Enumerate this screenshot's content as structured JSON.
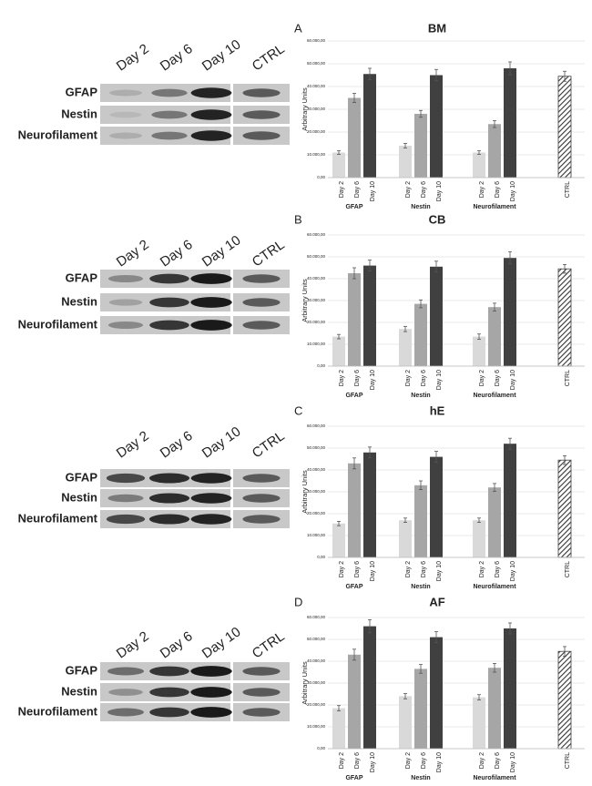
{
  "chart_data": [
    {
      "type": "bar",
      "panel": "A",
      "title": "BM",
      "y_label": "Arbitrary Units",
      "categories": [
        "Day 2",
        "Day 6",
        "Day 10",
        "Day 2",
        "Day 6",
        "Day 10",
        "Day 2",
        "Day 6",
        "Day 10",
        "CTRL"
      ],
      "groups": [
        "GFAP",
        "Nestin",
        "Neurofilament"
      ],
      "values": [
        11000,
        35000,
        45500,
        14000,
        28000,
        45000,
        11000,
        23500,
        48000,
        44500
      ],
      "errors": [
        800,
        2000,
        2500,
        1000,
        1500,
        2500,
        800,
        1500,
        2800,
        2200
      ],
      "colors": [
        "#d9d9d9",
        "#a6a6a6",
        "#404040",
        "#d9d9d9",
        "#a6a6a6",
        "#404040",
        "#d9d9d9",
        "#a6a6a6",
        "#404040",
        "#404040"
      ],
      "ylim": [
        0,
        60000
      ],
      "yticks": [
        {
          "value": 0,
          "label": "0,00"
        },
        {
          "value": 10000,
          "label": "10.000,00"
        },
        {
          "value": 20000,
          "label": "20.000,00"
        },
        {
          "value": 30000,
          "label": "30.000,00"
        },
        {
          "value": 40000,
          "label": "40.000,00"
        },
        {
          "value": 50000,
          "label": "50.000,00"
        },
        {
          "value": 60000,
          "label": "60.000,00"
        }
      ],
      "grid": true
    },
    {
      "type": "bar",
      "panel": "B",
      "title": "CB",
      "y_label": "Arbitrary Units",
      "categories": [
        "Day 2",
        "Day 6",
        "Day 10",
        "Day 2",
        "Day 6",
        "Day 10",
        "Day 2",
        "Day 6",
        "Day 10",
        "CTRL"
      ],
      "groups": [
        "GFAP",
        "Nestin",
        "Neurofilament"
      ],
      "values": [
        13500,
        42500,
        46000,
        17000,
        28500,
        45500,
        13500,
        27000,
        49500,
        44500
      ],
      "errors": [
        1000,
        2500,
        2500,
        1200,
        1800,
        2500,
        1200,
        1800,
        2800,
        2000
      ],
      "colors": [
        "#d9d9d9",
        "#a6a6a6",
        "#404040",
        "#d9d9d9",
        "#a6a6a6",
        "#404040",
        "#d9d9d9",
        "#a6a6a6",
        "#404040",
        "#404040"
      ],
      "ylim": [
        0,
        60000
      ],
      "yticks": [
        {
          "value": 0,
          "label": "0,00"
        },
        {
          "value": 10000,
          "label": "10.000,00"
        },
        {
          "value": 20000,
          "label": "20.000,00"
        },
        {
          "value": 30000,
          "label": "30.000,00"
        },
        {
          "value": 40000,
          "label": "40.000,00"
        },
        {
          "value": 50000,
          "label": "50.000,00"
        },
        {
          "value": 60000,
          "label": "60.000,00"
        }
      ],
      "grid": true
    },
    {
      "type": "bar",
      "panel": "C",
      "title": "hE",
      "y_label": "Arbitrary Units",
      "categories": [
        "Day 2",
        "Day 6",
        "Day 10",
        "Day 2",
        "Day 6",
        "Day 10",
        "Day 2",
        "Day 6",
        "Day 10",
        "CTRL"
      ],
      "groups": [
        "GFAP",
        "Nestin",
        "Neurofilament"
      ],
      "values": [
        15500,
        43000,
        48000,
        17000,
        33000,
        46000,
        17000,
        32000,
        52000,
        44500
      ],
      "errors": [
        1000,
        2500,
        2500,
        1000,
        2000,
        2500,
        1000,
        1800,
        2500,
        2000
      ],
      "colors": [
        "#d9d9d9",
        "#a6a6a6",
        "#404040",
        "#d9d9d9",
        "#a6a6a6",
        "#404040",
        "#d9d9d9",
        "#a6a6a6",
        "#404040",
        "#404040"
      ],
      "ylim": [
        0,
        60000
      ],
      "yticks": [
        {
          "value": 0,
          "label": "0,00"
        },
        {
          "value": 10000,
          "label": "10.000,00"
        },
        {
          "value": 20000,
          "label": "20.000,00"
        },
        {
          "value": 30000,
          "label": "30.000,00"
        },
        {
          "value": 40000,
          "label": "40.000,00"
        },
        {
          "value": 50000,
          "label": "50.000,00"
        },
        {
          "value": 60000,
          "label": "60.000,00"
        }
      ],
      "grid": true
    },
    {
      "type": "bar",
      "panel": "D",
      "title": "AF",
      "y_label": "Arbitrary Units",
      "categories": [
        "Day 2",
        "Day 6",
        "Day 10",
        "Day 2",
        "Day 6",
        "Day 10",
        "Day 2",
        "Day 6",
        "Day 10",
        "CTRL"
      ],
      "groups": [
        "GFAP",
        "Nestin",
        "Neurofilament"
      ],
      "values": [
        18500,
        43000,
        56000,
        24000,
        36500,
        51000,
        23500,
        37000,
        55000,
        44500
      ],
      "errors": [
        1200,
        2500,
        3000,
        1200,
        2000,
        2500,
        1200,
        2000,
        2500,
        2200
      ],
      "colors": [
        "#d9d9d9",
        "#a6a6a6",
        "#404040",
        "#d9d9d9",
        "#a6a6a6",
        "#404040",
        "#d9d9d9",
        "#a6a6a6",
        "#404040",
        "#404040"
      ],
      "ylim": [
        0,
        60000
      ],
      "yticks": [
        {
          "value": 0,
          "label": "0,00"
        },
        {
          "value": 10000,
          "label": "10.000,00"
        },
        {
          "value": 20000,
          "label": "20.000,00"
        },
        {
          "value": 30000,
          "label": "30.000,00"
        },
        {
          "value": 40000,
          "label": "40.000,00"
        },
        {
          "value": 50000,
          "label": "50.000,00"
        },
        {
          "value": 60000,
          "label": "60.000,00"
        }
      ],
      "grid": true
    }
  ],
  "blots": [
    {
      "lanes": [
        "Day 2",
        "Day 6",
        "Day 10",
        "CTRL"
      ],
      "rows": [
        "GFAP",
        "Nestin",
        "Neurofilament"
      ]
    },
    {
      "lanes": [
        "Day 2",
        "Day 6",
        "Day 10",
        "CTRL"
      ],
      "rows": [
        "GFAP",
        "Nestin",
        "Neurofilament"
      ]
    },
    {
      "lanes": [
        "Day 2",
        "Day 6",
        "Day 10",
        "CTRL"
      ],
      "rows": [
        "GFAP",
        "Nestin",
        "Neurofilament"
      ]
    },
    {
      "lanes": [
        "Day 2",
        "Day 6",
        "Day 10",
        "CTRL"
      ],
      "rows": [
        "GFAP",
        "Nestin",
        "Neurofilament"
      ]
    }
  ]
}
